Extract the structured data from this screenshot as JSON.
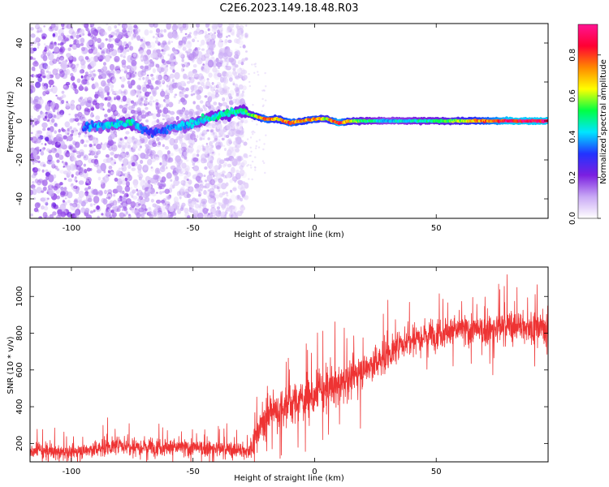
{
  "figure_title": "C2E6.2023.149.18.48.R03",
  "colors": {
    "spectrum_dot": "#8a2be2",
    "snr_line": "#ee3333",
    "axis": "#000000"
  },
  "chart_data": [
    {
      "type": "heatmap",
      "title": "C2E6.2023.149.18.48.R03",
      "xlabel": "Height of straight line (km)",
      "ylabel": "Frequency (Hz)",
      "xlim": [
        -117,
        96
      ],
      "ylim": [
        -50,
        50
      ],
      "x_ticks": [
        -100,
        -50,
        0,
        50
      ],
      "y_ticks": [
        -40,
        -20,
        0,
        20,
        40
      ],
      "colorbar": {
        "label": "Normalized spectral amplitude",
        "range": [
          0,
          0.95
        ],
        "ticks": [
          "0.0",
          "0.2",
          "0.4",
          "0.6",
          "0.8"
        ],
        "colormap": [
          "#ffffff",
          "#c9a9f5",
          "#7b1fe0",
          "#2233ff",
          "#00e5ff",
          "#00ff44",
          "#ffff00",
          "#ff8800",
          "#ff0033",
          "#ff1493"
        ]
      },
      "ridge": {
        "x": [
          -95,
          -85,
          -75,
          -68,
          -60,
          -50,
          -42,
          -35,
          -30,
          -26,
          -20,
          -15,
          -10,
          -5,
          0,
          5,
          10,
          15,
          20,
          30,
          40,
          50,
          60,
          70,
          80,
          95
        ],
        "y": [
          -3,
          -2,
          -1,
          -6,
          -4,
          -1,
          2,
          4,
          5,
          3,
          1,
          1,
          -1,
          0,
          1,
          1,
          -1,
          0,
          0,
          0,
          0,
          0,
          0,
          0,
          0,
          0
        ],
        "amplitude": [
          0.35,
          0.4,
          0.45,
          0.3,
          0.35,
          0.4,
          0.45,
          0.5,
          0.45,
          0.55,
          0.8,
          0.65,
          0.8,
          0.7,
          0.75,
          0.6,
          0.9,
          0.6,
          0.5,
          0.4,
          0.45,
          0.5,
          0.6,
          0.75,
          0.9,
          0.9
        ]
      },
      "scatter_noise": {
        "x_range": [
          -117,
          -28
        ],
        "y_range": [
          -50,
          50
        ],
        "typical_amplitude": [
          0.05,
          0.25
        ]
      },
      "grid": false
    },
    {
      "type": "line",
      "xlabel": "Height of straight line (km)",
      "ylabel": "SNR (10 * v/v)",
      "xlim": [
        -117,
        96
      ],
      "ylim": [
        100,
        1160
      ],
      "x_ticks": [
        -100,
        -50,
        0,
        50
      ],
      "y_ticks": [
        200,
        400,
        600,
        800,
        1000
      ],
      "series": [
        {
          "color": "#ee3333",
          "x": [
            -117,
            -100,
            -80,
            -60,
            -40,
            -27,
            -20,
            -10,
            0,
            10,
            20,
            30,
            40,
            50,
            60,
            70,
            80,
            96
          ],
          "mean": [
            160,
            150,
            190,
            180,
            170,
            160,
            350,
            420,
            460,
            520,
            600,
            680,
            780,
            800,
            820,
            810,
            840,
            830
          ],
          "spread": [
            60,
            60,
            80,
            75,
            70,
            70,
            160,
            170,
            170,
            160,
            150,
            140,
            130,
            130,
            130,
            130,
            140,
            120
          ]
        }
      ],
      "grid": false
    }
  ]
}
